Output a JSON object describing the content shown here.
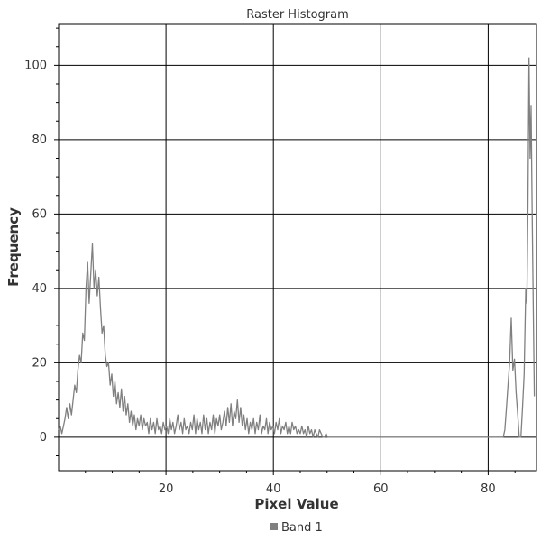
{
  "chart_data": {
    "type": "histogram",
    "title": "Raster Histogram",
    "xlabel": "Pixel Value",
    "ylabel": "Frequency",
    "xlim": [
      0,
      89
    ],
    "ylim": [
      -9,
      111
    ],
    "x_ticks": [
      20,
      40,
      60,
      80
    ],
    "y_ticks": [
      0,
      20,
      40,
      60,
      80,
      100
    ],
    "grid": true,
    "legend_position": "bottom-center",
    "series": [
      {
        "name": "Band 1",
        "color": "#808080",
        "points": [
          [
            0.0,
            2
          ],
          [
            0.3,
            3
          ],
          [
            0.6,
            1
          ],
          [
            0.9,
            3
          ],
          [
            1.2,
            5
          ],
          [
            1.5,
            8
          ],
          [
            1.8,
            5
          ],
          [
            2.1,
            9
          ],
          [
            2.4,
            6
          ],
          [
            2.7,
            10
          ],
          [
            3.0,
            14
          ],
          [
            3.3,
            12
          ],
          [
            3.6,
            18
          ],
          [
            3.9,
            22
          ],
          [
            4.2,
            20
          ],
          [
            4.5,
            28
          ],
          [
            4.8,
            26
          ],
          [
            5.1,
            40
          ],
          [
            5.4,
            47
          ],
          [
            5.7,
            36
          ],
          [
            6.0,
            44
          ],
          [
            6.3,
            52
          ],
          [
            6.6,
            40
          ],
          [
            6.9,
            45
          ],
          [
            7.2,
            38
          ],
          [
            7.5,
            43
          ],
          [
            7.8,
            35
          ],
          [
            8.1,
            28
          ],
          [
            8.4,
            30
          ],
          [
            8.7,
            22
          ],
          [
            9.0,
            19
          ],
          [
            9.3,
            20
          ],
          [
            9.6,
            14
          ],
          [
            9.9,
            17
          ],
          [
            10.2,
            11
          ],
          [
            10.5,
            15
          ],
          [
            10.8,
            9
          ],
          [
            11.1,
            12
          ],
          [
            11.4,
            8
          ],
          [
            11.7,
            13
          ],
          [
            12.0,
            7
          ],
          [
            12.3,
            11
          ],
          [
            12.6,
            6
          ],
          [
            12.9,
            9
          ],
          [
            13.2,
            4
          ],
          [
            13.5,
            7
          ],
          [
            13.8,
            3
          ],
          [
            14.1,
            6
          ],
          [
            14.4,
            2
          ],
          [
            14.7,
            5
          ],
          [
            15.0,
            3
          ],
          [
            15.3,
            6
          ],
          [
            15.6,
            2
          ],
          [
            15.9,
            5
          ],
          [
            16.2,
            3
          ],
          [
            16.5,
            4
          ],
          [
            16.8,
            1
          ],
          [
            17.1,
            5
          ],
          [
            17.4,
            2
          ],
          [
            17.7,
            4
          ],
          [
            18.0,
            1
          ],
          [
            18.3,
            5
          ],
          [
            18.6,
            2
          ],
          [
            18.9,
            3
          ],
          [
            19.2,
            1
          ],
          [
            19.5,
            4
          ],
          [
            19.8,
            2
          ],
          [
            20.1,
            3
          ],
          [
            20.4,
            1
          ],
          [
            20.7,
            5
          ],
          [
            21.0,
            2
          ],
          [
            21.3,
            4
          ],
          [
            21.6,
            1
          ],
          [
            21.9,
            3
          ],
          [
            22.2,
            6
          ],
          [
            22.5,
            2
          ],
          [
            22.8,
            4
          ],
          [
            23.1,
            1
          ],
          [
            23.4,
            5
          ],
          [
            23.7,
            2
          ],
          [
            24.0,
            3
          ],
          [
            24.3,
            1
          ],
          [
            24.6,
            4
          ],
          [
            24.9,
            2
          ],
          [
            25.2,
            6
          ],
          [
            25.5,
            1
          ],
          [
            25.8,
            5
          ],
          [
            26.1,
            2
          ],
          [
            26.4,
            4
          ],
          [
            26.7,
            1
          ],
          [
            27.0,
            6
          ],
          [
            27.3,
            2
          ],
          [
            27.6,
            5
          ],
          [
            27.9,
            1
          ],
          [
            28.2,
            4
          ],
          [
            28.5,
            2
          ],
          [
            28.8,
            6
          ],
          [
            29.1,
            1
          ],
          [
            29.4,
            5
          ],
          [
            29.7,
            3
          ],
          [
            30.0,
            6
          ],
          [
            30.3,
            2
          ],
          [
            30.6,
            4
          ],
          [
            30.9,
            7
          ],
          [
            31.2,
            3
          ],
          [
            31.5,
            8
          ],
          [
            31.8,
            4
          ],
          [
            32.1,
            9
          ],
          [
            32.4,
            3
          ],
          [
            32.7,
            7
          ],
          [
            33.0,
            5
          ],
          [
            33.3,
            10
          ],
          [
            33.6,
            4
          ],
          [
            33.9,
            8
          ],
          [
            34.2,
            3
          ],
          [
            34.5,
            6
          ],
          [
            34.8,
            2
          ],
          [
            35.1,
            5
          ],
          [
            35.4,
            1
          ],
          [
            35.7,
            4
          ],
          [
            36.0,
            2
          ],
          [
            36.3,
            5
          ],
          [
            36.6,
            1
          ],
          [
            36.9,
            4
          ],
          [
            37.2,
            2
          ],
          [
            37.5,
            6
          ],
          [
            37.8,
            1
          ],
          [
            38.1,
            3
          ],
          [
            38.4,
            2
          ],
          [
            38.7,
            5
          ],
          [
            39.0,
            1
          ],
          [
            39.3,
            4
          ],
          [
            39.6,
            2
          ],
          [
            39.9,
            3
          ],
          [
            40.2,
            1
          ],
          [
            40.5,
            4
          ],
          [
            40.8,
            2
          ],
          [
            41.1,
            5
          ],
          [
            41.4,
            1
          ],
          [
            41.7,
            3
          ],
          [
            42.0,
            2
          ],
          [
            42.3,
            4
          ],
          [
            42.6,
            1
          ],
          [
            42.9,
            3
          ],
          [
            43.2,
            1
          ],
          [
            43.5,
            4
          ],
          [
            43.8,
            2
          ],
          [
            44.1,
            3
          ],
          [
            44.4,
            1
          ],
          [
            44.7,
            2
          ],
          [
            45.0,
            1
          ],
          [
            45.3,
            3
          ],
          [
            45.6,
            1
          ],
          [
            45.9,
            2
          ],
          [
            46.2,
            0
          ],
          [
            46.5,
            3
          ],
          [
            46.8,
            1
          ],
          [
            47.1,
            2
          ],
          [
            47.4,
            0
          ],
          [
            47.7,
            2
          ],
          [
            48.0,
            1
          ],
          [
            48.3,
            0
          ],
          [
            48.6,
            2
          ],
          [
            48.9,
            1
          ],
          [
            49.2,
            0
          ],
          [
            49.5,
            0
          ],
          [
            49.8,
            1
          ],
          [
            50.1,
            0
          ],
          [
            50.4,
            0
          ],
          [
            51.0,
            0
          ],
          [
            55.0,
            0
          ],
          [
            60.0,
            0
          ],
          [
            65.0,
            0
          ],
          [
            70.0,
            0
          ],
          [
            75.0,
            0
          ],
          [
            80.0,
            0
          ],
          [
            82.8,
            0
          ],
          [
            83.1,
            2
          ],
          [
            83.4,
            8
          ],
          [
            83.7,
            14
          ],
          [
            84.0,
            20
          ],
          [
            84.3,
            32
          ],
          [
            84.6,
            18
          ],
          [
            84.9,
            21
          ],
          [
            85.2,
            12
          ],
          [
            85.5,
            6
          ],
          [
            85.8,
            0
          ],
          [
            86.1,
            0
          ],
          [
            86.4,
            8
          ],
          [
            86.7,
            17
          ],
          [
            87.0,
            40
          ],
          [
            87.2,
            36
          ],
          [
            87.4,
            62
          ],
          [
            87.6,
            102
          ],
          [
            87.8,
            75
          ],
          [
            88.0,
            89
          ],
          [
            88.2,
            60
          ],
          [
            88.4,
            35
          ],
          [
            88.6,
            11
          ]
        ]
      }
    ]
  }
}
